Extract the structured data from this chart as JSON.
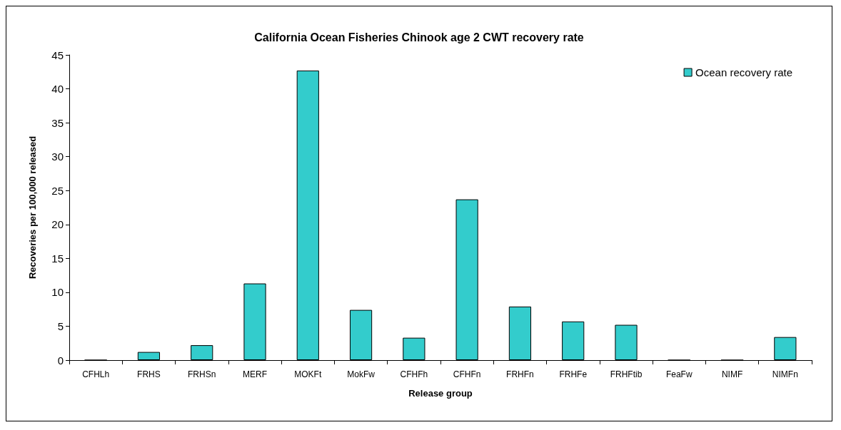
{
  "chart_data": {
    "type": "bar",
    "title": "California Ocean Fisheries Chinook age 2 CWT recovery rate",
    "xlabel": "Release group",
    "ylabel": "Recoveries per 100,000 released",
    "categories": [
      "CFHLh",
      "FRHS",
      "FRHSn",
      "MERF",
      "MOKFt",
      "MokFw",
      "CFHFh",
      "CFHFn",
      "FRHFn",
      "FRHFe",
      "FRHFtib",
      "FeaFw",
      "NIMF",
      "NIMFn"
    ],
    "series": [
      {
        "name": "Ocean recovery rate",
        "color": "#33cccc",
        "values": [
          0,
          1.2,
          2.2,
          11.3,
          42.7,
          7.4,
          3.3,
          23.7,
          7.9,
          5.7,
          5.2,
          0,
          0,
          3.4
        ]
      }
    ],
    "ylim": [
      0,
      45
    ],
    "yticks": [
      0,
      5,
      10,
      15,
      20,
      25,
      30,
      35,
      40,
      45
    ],
    "grid": false,
    "legend": "top right"
  }
}
